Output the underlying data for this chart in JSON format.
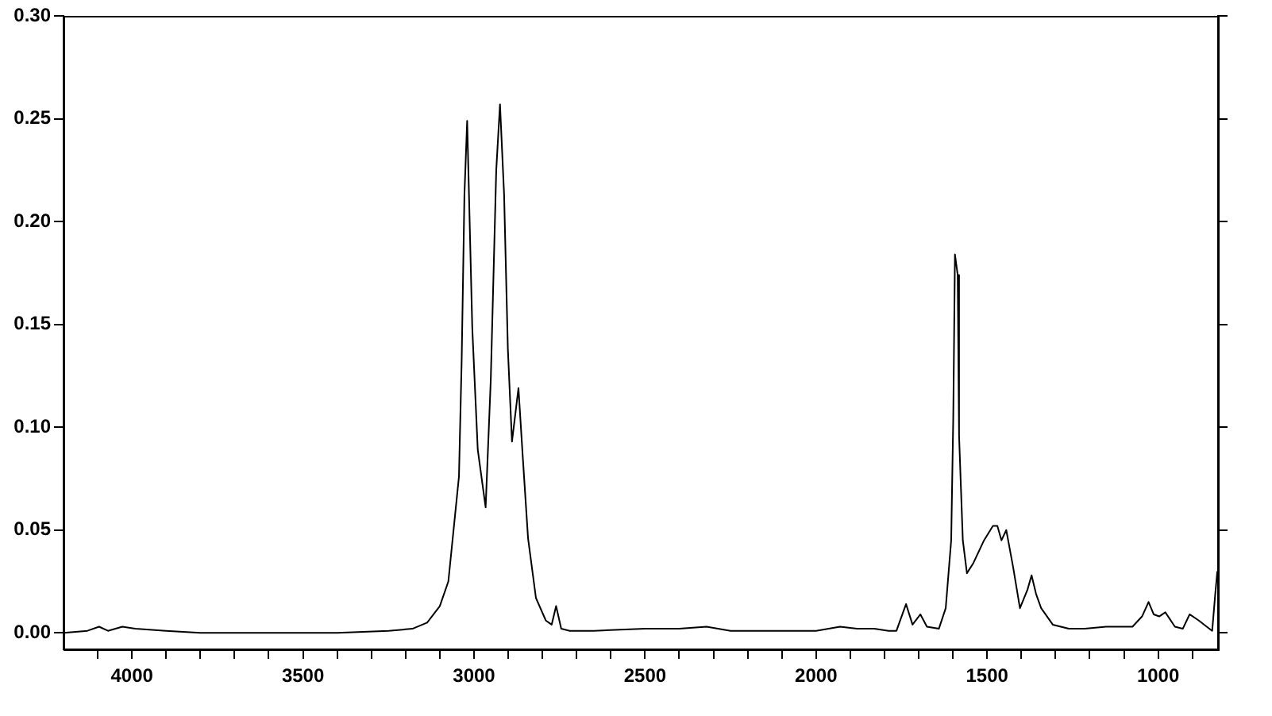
{
  "chart_data": {
    "type": "line",
    "x": [
      4200,
      4130,
      4096,
      4070,
      4028,
      3990,
      3900,
      3800,
      3600,
      3400,
      3250,
      3180,
      3137,
      3100,
      3075,
      3044,
      3036,
      3028,
      3020,
      3005,
      2989,
      2966,
      2951,
      2935,
      2924,
      2912,
      2901,
      2889,
      2870,
      2858,
      2842,
      2819,
      2790,
      2773,
      2760,
      2745,
      2720,
      2650,
      2500,
      2400,
      2320,
      2250,
      2100,
      2000,
      1930,
      1880,
      1830,
      1788,
      1765,
      1737,
      1718,
      1695,
      1676,
      1641,
      1621,
      1605,
      1599,
      1594,
      1586,
      1582,
      1571,
      1559,
      1540,
      1509,
      1483,
      1470,
      1458,
      1444,
      1424,
      1404,
      1382,
      1370,
      1357,
      1342,
      1308,
      1261,
      1215,
      1152,
      1075,
      1047,
      1028,
      1013,
      997,
      979,
      951,
      928,
      908,
      881,
      858,
      842,
      833,
      827
    ],
    "series": [
      {
        "color": "#000000",
        "values": [
          0.0,
          0.001,
          0.003,
          0.001,
          0.003,
          0.002,
          0.001,
          0.0,
          0.0,
          0.0,
          0.001,
          0.002,
          0.005,
          0.013,
          0.025,
          0.076,
          0.133,
          0.213,
          0.249,
          0.148,
          0.089,
          0.061,
          0.123,
          0.225,
          0.257,
          0.213,
          0.138,
          0.093,
          0.119,
          0.087,
          0.046,
          0.017,
          0.006,
          0.004,
          0.013,
          0.002,
          0.001,
          0.001,
          0.002,
          0.002,
          0.003,
          0.001,
          0.001,
          0.001,
          0.003,
          0.002,
          0.002,
          0.001,
          0.001,
          0.014,
          0.004,
          0.009,
          0.003,
          0.002,
          0.012,
          0.045,
          0.104,
          0.184,
          0.174,
          0.096,
          0.045,
          0.029,
          0.034,
          0.045,
          0.052,
          0.052,
          0.045,
          0.05,
          0.032,
          0.012,
          0.021,
          0.028,
          0.019,
          0.012,
          0.004,
          0.002,
          0.002,
          0.003,
          0.003,
          0.008,
          0.015,
          0.009,
          0.008,
          0.01,
          0.003,
          0.002,
          0.009,
          0.006,
          0.003,
          0.001,
          0.019,
          0.03
        ]
      }
    ],
    "xlim": [
      4200,
      825
    ],
    "xticks": [
      {
        "value": 4100,
        "label": null
      },
      {
        "value": 4000,
        "label": "4000"
      },
      {
        "value": 3900,
        "label": null
      },
      {
        "value": 3800,
        "label": null
      },
      {
        "value": 3700,
        "label": null
      },
      {
        "value": 3600,
        "label": null
      },
      {
        "value": 3500,
        "label": "3500"
      },
      {
        "value": 3400,
        "label": null
      },
      {
        "value": 3300,
        "label": null
      },
      {
        "value": 3200,
        "label": null
      },
      {
        "value": 3100,
        "label": null
      },
      {
        "value": 3000,
        "label": "3000"
      },
      {
        "value": 2900,
        "label": null
      },
      {
        "value": 2800,
        "label": null
      },
      {
        "value": 2700,
        "label": null
      },
      {
        "value": 2600,
        "label": null
      },
      {
        "value": 2500,
        "label": "2500"
      },
      {
        "value": 2400,
        "label": null
      },
      {
        "value": 2300,
        "label": null
      },
      {
        "value": 2200,
        "label": null
      },
      {
        "value": 2100,
        "label": null
      },
      {
        "value": 2000,
        "label": "2000"
      },
      {
        "value": 1900,
        "label": null
      },
      {
        "value": 1800,
        "label": null
      },
      {
        "value": 1700,
        "label": null
      },
      {
        "value": 1600,
        "label": null
      },
      {
        "value": 1500,
        "label": "1500"
      },
      {
        "value": 1400,
        "label": null
      },
      {
        "value": 1300,
        "label": null
      },
      {
        "value": 1200,
        "label": null
      },
      {
        "value": 1100,
        "label": null
      },
      {
        "value": 1000,
        "label": "1000"
      },
      {
        "value": 900,
        "label": null
      }
    ],
    "ylim": [
      -0.008,
      0.3
    ],
    "yticks": [
      {
        "value": 0,
        "label": "0.00"
      },
      {
        "value": 0.05,
        "label": "0.05"
      },
      {
        "value": 0.1,
        "label": "0.10"
      },
      {
        "value": 0.15,
        "label": "0.15"
      },
      {
        "value": 0.2,
        "label": "0.20"
      },
      {
        "value": 0.25,
        "label": "0.25"
      },
      {
        "value": 0.3,
        "label": "0.30"
      }
    ],
    "grid": false,
    "legend": false,
    "marker": "none",
    "line_style": "solid"
  }
}
